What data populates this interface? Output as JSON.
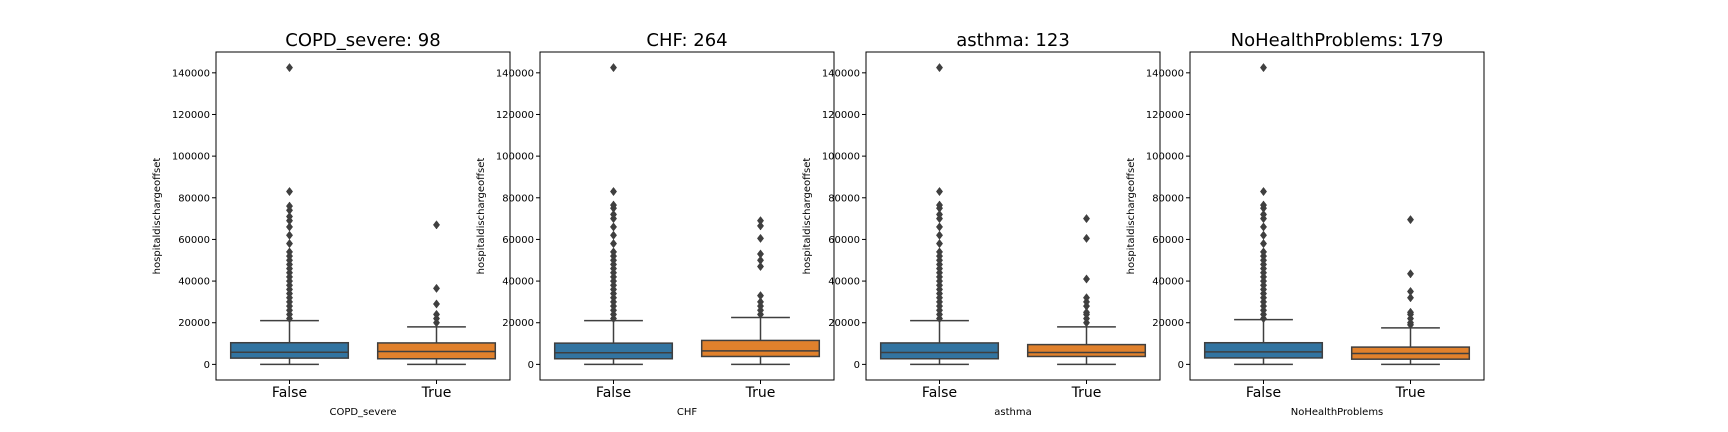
{
  "chart_data": [
    {
      "type": "box",
      "title": "COPD_severe: 98",
      "xlabel": "COPD_severe",
      "ylabel": "hospitaldischargeoffset",
      "categories": [
        "False",
        "True"
      ],
      "ylim": [
        -7500,
        150000
      ],
      "yticks": [
        0,
        20000,
        40000,
        60000,
        80000,
        100000,
        120000,
        140000
      ],
      "colors": [
        "#3274a1",
        "#e1812c"
      ],
      "boxes": [
        {
          "q1": 3000,
          "median": 5800,
          "q3": 10400,
          "whislo": 0,
          "whishi": 21000,
          "outliers": [
            22000,
            24000,
            26000,
            28000,
            30000,
            32000,
            34000,
            36000,
            38000,
            40000,
            42000,
            44000,
            46000,
            48000,
            50000,
            52000,
            54000,
            58000,
            62000,
            66000,
            69000,
            71000,
            74000,
            76000,
            83000,
            142500
          ]
        },
        {
          "q1": 2700,
          "median": 6200,
          "q3": 10300,
          "whislo": 0,
          "whishi": 18000,
          "outliers": [
            20000,
            22000,
            24000,
            29000,
            36500,
            67000
          ]
        }
      ]
    },
    {
      "type": "box",
      "title": "CHF: 264",
      "xlabel": "CHF",
      "ylabel": "hospitaldischargeoffset",
      "categories": [
        "False",
        "True"
      ],
      "ylim": [
        -7500,
        150000
      ],
      "yticks": [
        0,
        20000,
        40000,
        60000,
        80000,
        100000,
        120000,
        140000
      ],
      "colors": [
        "#3274a1",
        "#e1812c"
      ],
      "boxes": [
        {
          "q1": 2700,
          "median": 5600,
          "q3": 10200,
          "whislo": 0,
          "whishi": 21000,
          "outliers": [
            22000,
            24000,
            26000,
            28000,
            30000,
            32000,
            34000,
            36000,
            38000,
            40000,
            42000,
            44000,
            46000,
            48000,
            50000,
            52000,
            54000,
            58000,
            62000,
            66000,
            70000,
            72000,
            75000,
            76500,
            83000,
            142500
          ]
        },
        {
          "q1": 3800,
          "median": 6500,
          "q3": 11500,
          "whislo": 0,
          "whishi": 22500,
          "outliers": [
            24000,
            26000,
            28000,
            30000,
            33000,
            47000,
            50000,
            53000,
            60500,
            66500,
            69000
          ]
        }
      ]
    },
    {
      "type": "box",
      "title": "asthma: 123",
      "xlabel": "asthma",
      "ylabel": "hospitaldischargeoffset",
      "categories": [
        "False",
        "True"
      ],
      "ylim": [
        -7500,
        150000
      ],
      "yticks": [
        0,
        20000,
        40000,
        60000,
        80000,
        100000,
        120000,
        140000
      ],
      "colors": [
        "#3274a1",
        "#e1812c"
      ],
      "boxes": [
        {
          "q1": 2700,
          "median": 5700,
          "q3": 10300,
          "whislo": 0,
          "whishi": 21000,
          "outliers": [
            22000,
            24000,
            26000,
            28000,
            30000,
            32000,
            34000,
            36000,
            38000,
            40000,
            42000,
            44000,
            46000,
            48000,
            50000,
            52000,
            54000,
            58000,
            62000,
            66000,
            70000,
            72000,
            75000,
            76500,
            83000,
            142500
          ]
        },
        {
          "q1": 3800,
          "median": 5700,
          "q3": 9500,
          "whislo": 0,
          "whishi": 18000,
          "outliers": [
            20000,
            22000,
            24000,
            25000,
            28000,
            30000,
            32000,
            41000,
            60500,
            70000
          ]
        }
      ]
    },
    {
      "type": "box",
      "title": "NoHealthProblems: 179",
      "xlabel": "NoHealthProblems",
      "ylabel": "hospitaldischargeoffset",
      "categories": [
        "False",
        "True"
      ],
      "ylim": [
        -7500,
        150000
      ],
      "yticks": [
        0,
        20000,
        40000,
        60000,
        80000,
        100000,
        120000,
        140000
      ],
      "colors": [
        "#3274a1",
        "#e1812c"
      ],
      "boxes": [
        {
          "q1": 3100,
          "median": 6000,
          "q3": 10400,
          "whislo": 0,
          "whishi": 21500,
          "outliers": [
            22000,
            24000,
            26000,
            28000,
            30000,
            32000,
            34000,
            36000,
            38000,
            40000,
            42000,
            44000,
            46000,
            48000,
            50000,
            52000,
            54000,
            58000,
            62000,
            66000,
            70000,
            72000,
            75000,
            76500,
            83000,
            142500
          ]
        },
        {
          "q1": 2500,
          "median": 5200,
          "q3": 8300,
          "whislo": 0,
          "whishi": 17500,
          "outliers": [
            19000,
            20000,
            22000,
            24000,
            25000,
            32000,
            35000,
            43500,
            69500
          ]
        }
      ]
    }
  ]
}
